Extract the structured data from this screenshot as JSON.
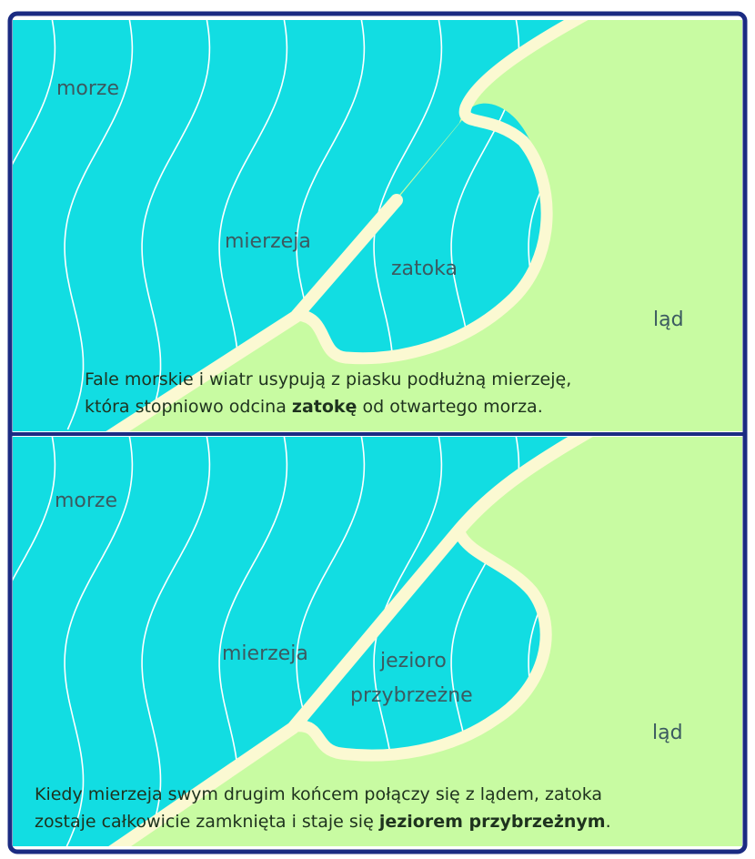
{
  "colors": {
    "frame": "#1b2b82",
    "water": "#12dde2",
    "land": "#c8fba2",
    "sand": "#fbf9d2",
    "waves": "#ffffff"
  },
  "panel1": {
    "labels": {
      "sea": "morze",
      "spit": "mierzeja",
      "bay": "zatoka",
      "land": "ląd"
    },
    "caption": {
      "line1": "Fale morskie i wiatr usypują z piasku podłużną mierzeję,",
      "line2_before": "która stopniowo odcina ",
      "line2_bold": "zatokę",
      "line2_after": " od otwartego morza."
    }
  },
  "panel2": {
    "labels": {
      "sea": "morze",
      "spit": "mierzeja",
      "lake_line1": "jezioro",
      "lake_line2": "przybrzeżne",
      "land": "ląd"
    },
    "caption": {
      "line1": "Kiedy mierzeja swym drugim końcem połączy się z lądem, zatoka",
      "line2_before": "zostaje całkowicie zamknięta i staje się ",
      "line2_bold": "jeziorem przybrzeżnym",
      "line2_after": "."
    }
  }
}
